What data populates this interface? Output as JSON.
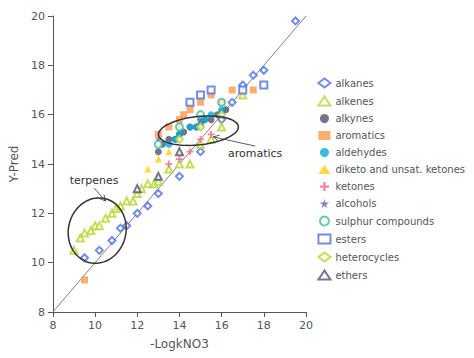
{
  "chart_data": {
    "type": "scatter",
    "xlabel": "-LogkNO3",
    "ylabel": "Y-Pred",
    "xlim": [
      8,
      20
    ],
    "ylim": [
      8,
      20
    ],
    "xticks": [
      8,
      10,
      12,
      14,
      16,
      18,
      20
    ],
    "yticks": [
      8,
      10,
      12,
      14,
      16,
      18,
      20
    ],
    "grid": false,
    "legend": "right",
    "series": [
      {
        "type": "line",
        "color": "gray",
        "values": [
          [
            8,
            8
          ],
          [
            20,
            20
          ]
        ]
      },
      {
        "name": "alkanes",
        "marker": "diamond-open",
        "values": [
          [
            9.5,
            10.2
          ],
          [
            10.2,
            10.5
          ],
          [
            10.8,
            10.9
          ],
          [
            11.2,
            11.4
          ],
          [
            11.5,
            11.5
          ],
          [
            12.0,
            12.0
          ],
          [
            12.5,
            12.3
          ],
          [
            13.0,
            12.8
          ],
          [
            14.0,
            13.5
          ],
          [
            15.0,
            14.5
          ],
          [
            16.0,
            15.8
          ],
          [
            17.0,
            17.2
          ],
          [
            17.5,
            17.6
          ],
          [
            18.0,
            17.8
          ],
          [
            19.5,
            19.8
          ],
          [
            16.5,
            16.5
          ]
        ]
      },
      {
        "name": "alkenes",
        "marker": "triangle-open",
        "values": [
          [
            9.0,
            10.5
          ],
          [
            9.3,
            11.0
          ],
          [
            9.5,
            11.2
          ],
          [
            9.8,
            11.3
          ],
          [
            10.0,
            11.5
          ],
          [
            10.2,
            11.5
          ],
          [
            10.5,
            11.8
          ],
          [
            10.8,
            12.0
          ],
          [
            11.0,
            12.2
          ],
          [
            11.2,
            12.3
          ],
          [
            11.5,
            12.5
          ],
          [
            11.8,
            12.5
          ],
          [
            12.0,
            12.8
          ],
          [
            12.2,
            13.0
          ],
          [
            12.5,
            13.2
          ],
          [
            12.8,
            13.2
          ],
          [
            13.0,
            13.3
          ],
          [
            13.5,
            13.8
          ],
          [
            14.0,
            14.0
          ],
          [
            14.5,
            14.0
          ],
          [
            15.0,
            14.8
          ],
          [
            15.5,
            15.0
          ],
          [
            16.0,
            15.5
          ],
          [
            17.0,
            16.8
          ]
        ]
      },
      {
        "name": "alkynes",
        "marker": "circle",
        "values": [
          [
            13.0,
            14.5
          ],
          [
            13.2,
            14.8
          ],
          [
            13.5,
            15.0
          ],
          [
            13.8,
            15.0
          ],
          [
            14.0,
            15.2
          ],
          [
            14.2,
            15.3
          ],
          [
            14.5,
            15.5
          ],
          [
            14.8,
            15.5
          ],
          [
            15.0,
            15.6
          ],
          [
            15.2,
            15.8
          ],
          [
            15.5,
            15.8
          ],
          [
            15.8,
            16.0
          ],
          [
            16.0,
            16.1
          ],
          [
            16.2,
            16.2
          ]
        ]
      },
      {
        "name": "aromatics",
        "marker": "square",
        "values": [
          [
            9.5,
            9.3
          ],
          [
            13.0,
            15.2
          ],
          [
            13.5,
            15.5
          ],
          [
            14.0,
            15.8
          ],
          [
            14.2,
            16.0
          ],
          [
            14.5,
            16.2
          ],
          [
            15.0,
            16.5
          ],
          [
            15.5,
            16.8
          ],
          [
            16.0,
            16.5
          ],
          [
            16.5,
            17.0
          ],
          [
            17.5,
            17.0
          ]
        ]
      },
      {
        "name": "aldehydes",
        "marker": "circle",
        "values": [
          [
            13.5,
            14.8
          ],
          [
            13.8,
            15.0
          ],
          [
            14.0,
            15.2
          ],
          [
            14.5,
            15.5
          ],
          [
            14.8,
            15.5
          ],
          [
            15.0,
            15.8
          ],
          [
            15.2,
            15.8
          ],
          [
            15.5,
            16.0
          ],
          [
            16.0,
            16.2
          ]
        ]
      },
      {
        "name": "diketo and unsat. ketones",
        "marker": "triangle",
        "values": [
          [
            12.5,
            13.8
          ],
          [
            13.0,
            14.2
          ],
          [
            13.5,
            14.5
          ],
          [
            14.0,
            14.5
          ]
        ]
      },
      {
        "name": "ketones",
        "marker": "plus",
        "values": [
          [
            13.5,
            14.0
          ],
          [
            14.0,
            14.2
          ],
          [
            14.5,
            14.5
          ],
          [
            15.0,
            15.0
          ],
          [
            15.5,
            15.2
          ],
          [
            16.0,
            16.5
          ]
        ]
      },
      {
        "name": "alcohols",
        "marker": "star",
        "values": [
          [
            13.0,
            15.0
          ],
          [
            14.0,
            15.5
          ],
          [
            15.0,
            15.8
          ]
        ]
      },
      {
        "name": "sulphur compounds",
        "marker": "circle-open",
        "values": [
          [
            13.0,
            14.8
          ],
          [
            14.0,
            15.5
          ],
          [
            15.0,
            16.0
          ],
          [
            16.0,
            16.5
          ]
        ]
      },
      {
        "name": "esters",
        "marker": "square-open",
        "values": [
          [
            14.5,
            16.5
          ],
          [
            15.0,
            16.8
          ],
          [
            15.5,
            17.0
          ],
          [
            17.0,
            17.0
          ],
          [
            18.0,
            17.2
          ]
        ]
      },
      {
        "name": "heterocycles",
        "marker": "diamond-open",
        "values": [
          [
            14.0,
            15.0
          ],
          [
            15.0,
            15.5
          ],
          [
            16.0,
            16.0
          ]
        ]
      },
      {
        "name": "ethers",
        "marker": "triangle-open",
        "values": [
          [
            12.0,
            13.0
          ],
          [
            13.0,
            13.5
          ],
          [
            14.0,
            14.5
          ]
        ]
      }
    ],
    "ellipses": [
      {
        "cx": 10.1,
        "cy": 11.3,
        "w": 2.8,
        "h": 2.6,
        "angle": 30
      },
      {
        "cx": 14.9,
        "cy": 15.35,
        "w": 3.8,
        "h": 1.15,
        "angle": 5
      }
    ],
    "annotations": [
      {
        "text": "terpenes",
        "xy": [
          10.5,
          12.5
        ],
        "xytext": [
          8.8,
          13.1
        ]
      },
      {
        "text": "aromatics",
        "xy": [
          15.6,
          15.1
        ],
        "xytext": [
          16.3,
          14.2
        ]
      }
    ]
  }
}
